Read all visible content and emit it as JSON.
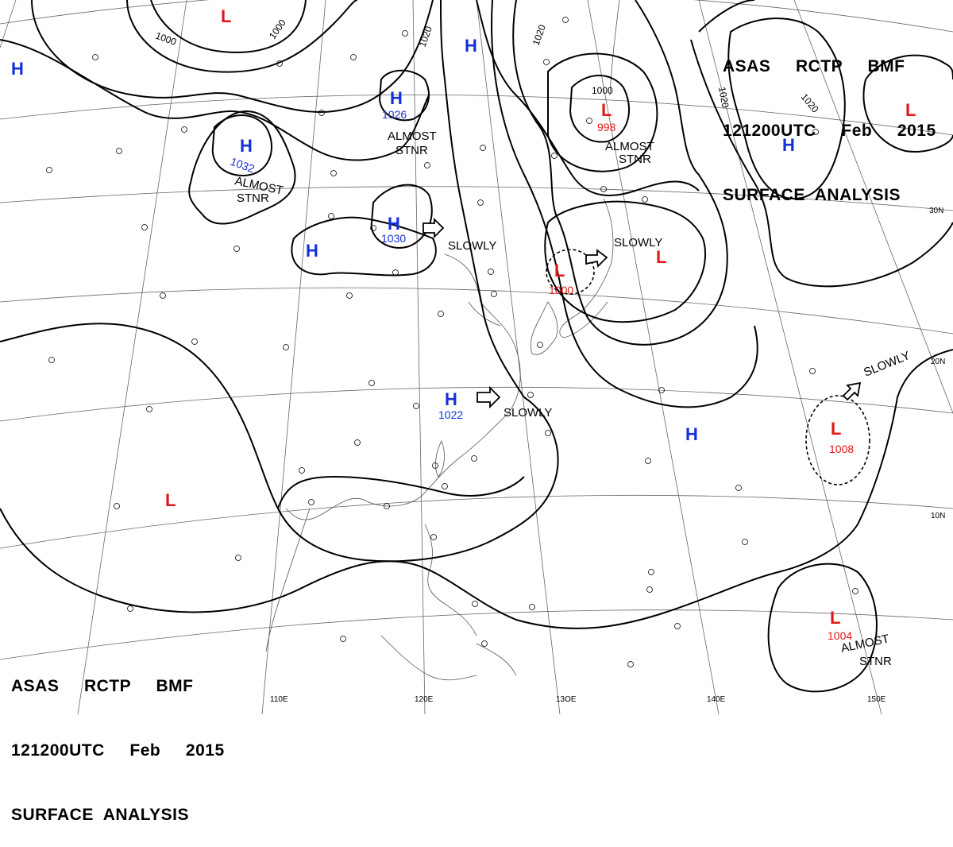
{
  "header": {
    "line1": "ASAS     RCTP     BMF",
    "line2": "121200UTC     Feb     2015",
    "line3": "SURFACE  ANALYSIS"
  },
  "footer": {
    "line1": "ASAS     RCTP     BMF",
    "line2": "121200UTC     Feb     2015",
    "line3": "SURFACE  ANALYSIS"
  },
  "colors": {
    "high": "#1430d8",
    "low": "#e01818",
    "isobar": "#000000",
    "grid": "#555555",
    "coast": "#444444"
  },
  "longitude_labels": [
    "110E",
    "120E",
    "13OE",
    "140E",
    "150E"
  ],
  "latitude_labels": [
    "30N",
    "20N",
    "10N"
  ],
  "isobar_labels": {
    "i1000a": "1000",
    "i1000b": "1000",
    "i1020a": "1020",
    "i1020b": "1020",
    "i1020c": "1020",
    "i1020d": "1020",
    "i1000c": "1000"
  },
  "pressure_centers": {
    "h1": {
      "type": "H"
    },
    "h2": {
      "type": "H"
    },
    "h3": {
      "type": "H",
      "value": "1026"
    },
    "h4": {
      "type": "H",
      "value": "1032"
    },
    "h5": {
      "type": "H"
    },
    "h6": {
      "type": "H",
      "value": "1030"
    },
    "h7": {
      "type": "H",
      "value": "1022"
    },
    "h8": {
      "type": "H"
    },
    "h9": {
      "type": "H"
    },
    "l1": {
      "type": "L"
    },
    "l2": {
      "type": "L",
      "value": "998"
    },
    "l3": {
      "type": "L"
    },
    "l4": {
      "type": "L",
      "value": "1000"
    },
    "l5": {
      "type": "L"
    },
    "l6": {
      "type": "L",
      "value": "1008"
    },
    "l7": {
      "type": "L"
    },
    "l8": {
      "type": "L",
      "value": "1004"
    }
  },
  "movement_labels": {
    "m1": "ALMOST",
    "m1b": "STNR",
    "m2": "ALMOST",
    "m2b": "STNR",
    "m3": "ALMOST",
    "m3b": "STNR",
    "m4": "SLOWLY",
    "m5": "SLOWLY",
    "m6": "SLOWLY",
    "m7": "SLOWLY",
    "m8": "ALMOST",
    "m8b": "STNR"
  }
}
